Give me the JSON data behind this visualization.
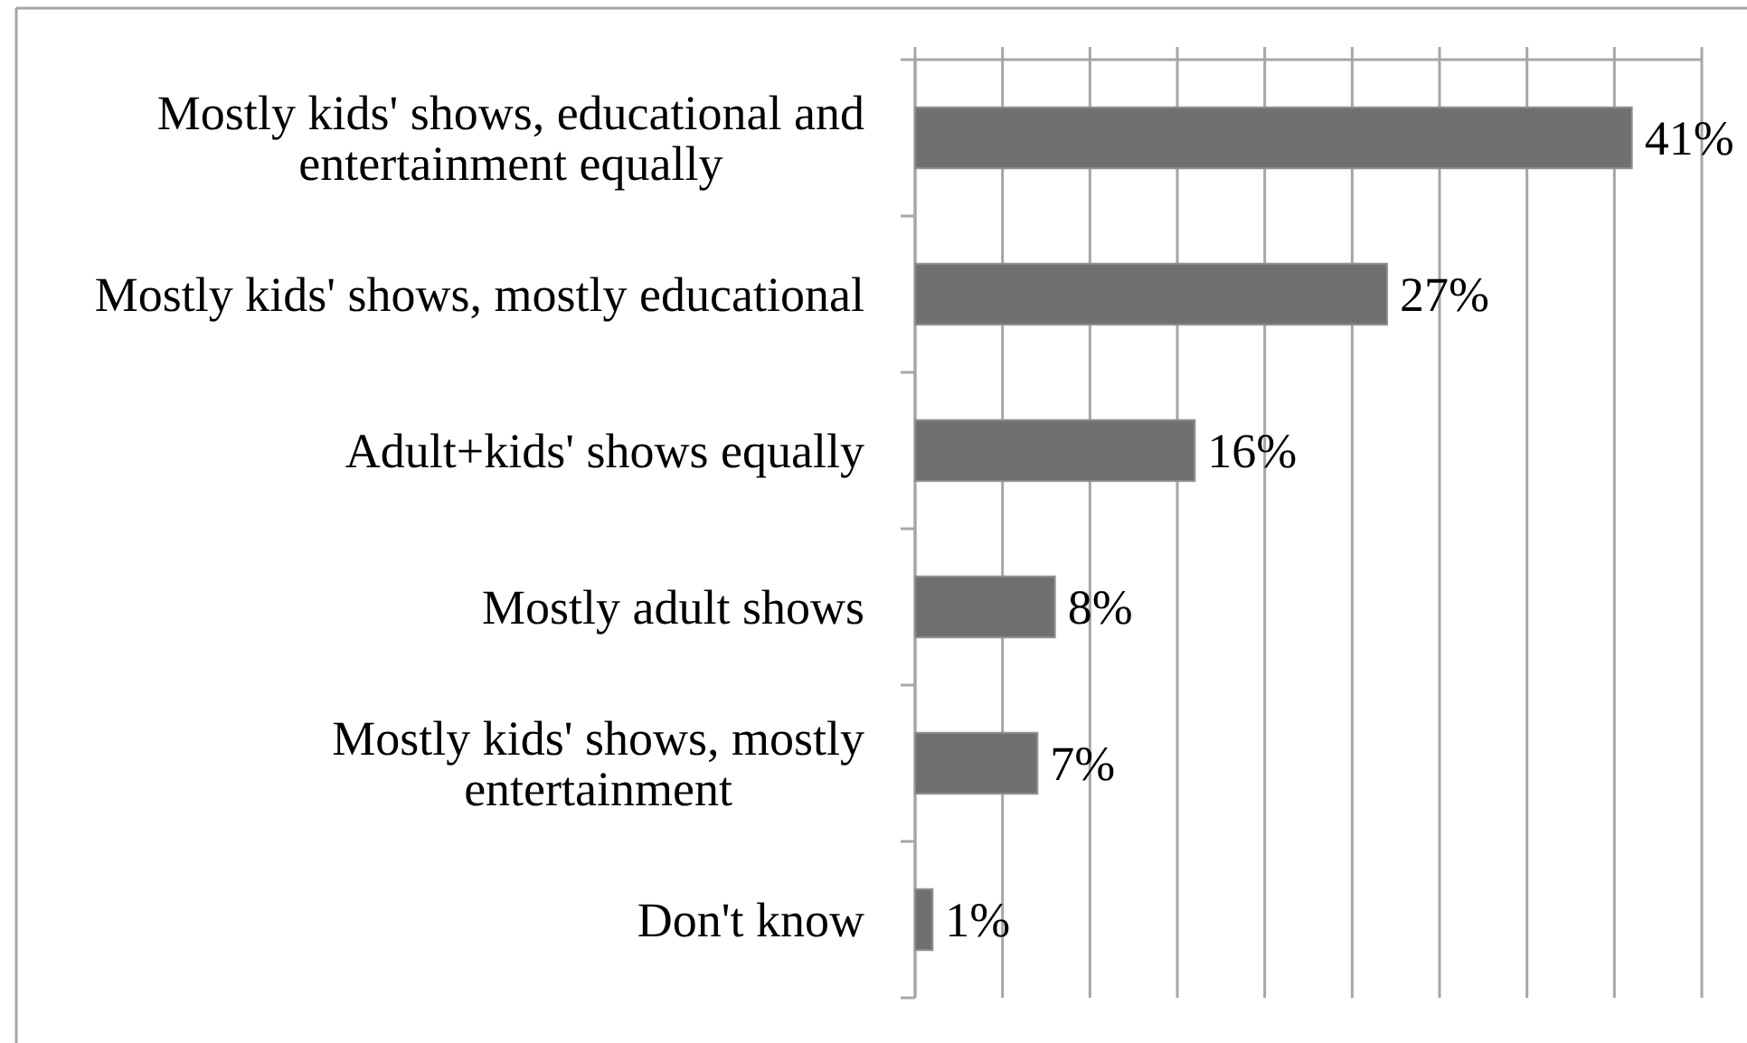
{
  "chart_data": {
    "type": "bar",
    "orientation": "horizontal",
    "categories": [
      "Mostly kids' shows, educational and entertainment equally",
      "Mostly kids' shows, mostly educational",
      "Adult+kids' shows equally",
      "Mostly adult shows",
      "Mostly kids' shows, mostly entertainment",
      "Don't know"
    ],
    "values": [
      41,
      27,
      16,
      8,
      7,
      1
    ],
    "value_labels": [
      "41%",
      "27%",
      "16%",
      "8%",
      "7%",
      "1%"
    ],
    "color": "#707070",
    "xlim": [
      0,
      45
    ],
    "xticks": [
      {
        "value": 0,
        "label": null
      },
      {
        "value": 5,
        "label": null
      },
      {
        "value": 10,
        "label": null
      },
      {
        "value": 15,
        "label": null
      },
      {
        "value": 20,
        "label": null
      },
      {
        "value": 25,
        "label": null
      },
      {
        "value": 30,
        "label": null
      },
      {
        "value": 35,
        "label": null
      },
      {
        "value": 40,
        "label": null
      },
      {
        "value": 45,
        "label": null
      }
    ],
    "grid": "x",
    "tick_labels": "y"
  }
}
